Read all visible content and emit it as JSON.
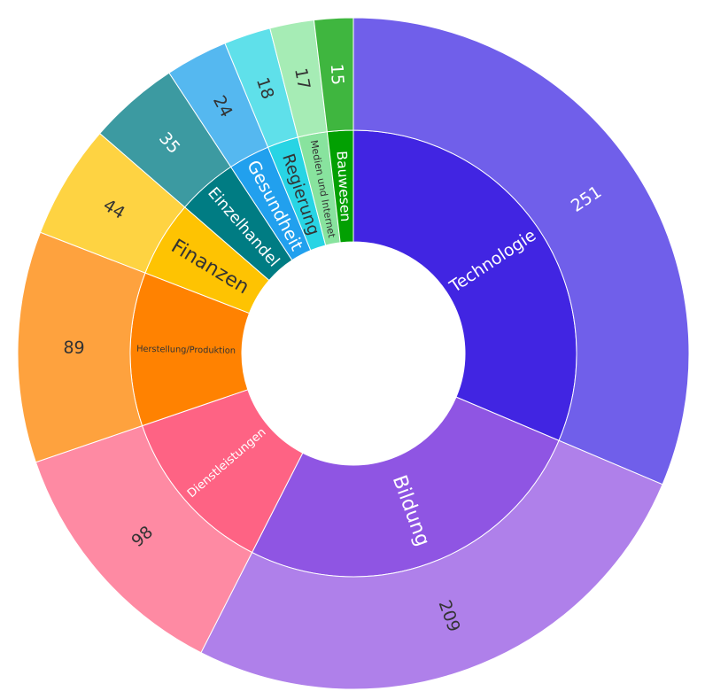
{
  "chart_data": {
    "type": "sunburst",
    "title": "",
    "categories": [
      {
        "label": "Technologie",
        "value": 251,
        "inner_color": "#4125e2",
        "outer_color": "#705fea"
      },
      {
        "label": "Bildung",
        "value": 209,
        "inner_color": "#8f55e3",
        "outer_color": "#af80ea"
      },
      {
        "label": "Dienstleistungen",
        "value": 98,
        "inner_color": "#fe6384",
        "outer_color": "#fe8aa3"
      },
      {
        "label": "Herstellung/Produktion",
        "value": 89,
        "inner_color": "#ff8201",
        "outer_color": "#fea23e"
      },
      {
        "label": "Finanzen",
        "value": 44,
        "inner_color": "#fec302",
        "outer_color": "#fed342"
      },
      {
        "label": "Einzelhandel",
        "value": 35,
        "inner_color": "#007c83",
        "outer_color": "#3c9aa1"
      },
      {
        "label": "Gesundheit",
        "value": 24,
        "inner_color": "#21a0ee",
        "outer_color": "#55b8f0"
      },
      {
        "label": "Regierung",
        "value": 18,
        "inner_color": "#28d4e4",
        "outer_color": "#5fe0ea"
      },
      {
        "label": "Medien und Internet",
        "value": 17,
        "inner_color": "#88e39e",
        "outer_color": "#a6ecb5"
      },
      {
        "label": "Bauwesen",
        "value": 15,
        "inner_color": "#02a002",
        "outer_color": "#3fb63f"
      }
    ]
  }
}
